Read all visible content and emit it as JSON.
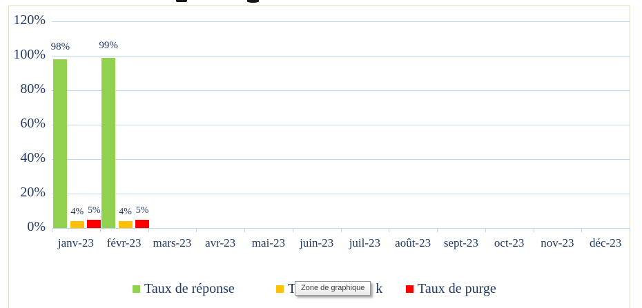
{
  "colors": {
    "text": "#1F3864",
    "gridline": "#BDD7EE",
    "frame_border": "#DED9C2",
    "series_green": "#92D050",
    "series_yellow": "#FFC000",
    "series_red": "#FF0000"
  },
  "tooltip": {
    "text": "Zone de graphique"
  },
  "chart_data": {
    "type": "bar",
    "categories": [
      "janv-23",
      "févr-23",
      "mars-23",
      "avr-23",
      "mai-23",
      "juin-23",
      "juil-23",
      "août-23",
      "sept-23",
      "oct-23",
      "nov-23",
      "déc-23"
    ],
    "series": [
      {
        "name": "Taux de réponse",
        "color": "#92D050",
        "values": [
          98,
          99,
          null,
          null,
          null,
          null,
          null,
          null,
          null,
          null,
          null,
          null
        ],
        "data_labels": [
          "98%",
          "99%",
          null,
          null,
          null,
          null,
          null,
          null,
          null,
          null,
          null,
          null
        ]
      },
      {
        "name_visible_prefix": "T",
        "name_visible_suffix": "k",
        "name_hidden_by_tooltip": true,
        "color": "#FFC000",
        "values": [
          4,
          4,
          null,
          null,
          null,
          null,
          null,
          null,
          null,
          null,
          null,
          null
        ],
        "data_labels": [
          "4%",
          "4%",
          null,
          null,
          null,
          null,
          null,
          null,
          null,
          null,
          null,
          null
        ]
      },
      {
        "name": "Taux de purge",
        "color": "#FF0000",
        "values": [
          5,
          5,
          null,
          null,
          null,
          null,
          null,
          null,
          null,
          null,
          null,
          null
        ],
        "data_labels": [
          "5%",
          "5%",
          null,
          null,
          null,
          null,
          null,
          null,
          null,
          null,
          null,
          null
        ]
      }
    ],
    "y_axis": {
      "tick_labels": [
        "0%",
        "20%",
        "40%",
        "60%",
        "80%",
        "100%",
        "120%"
      ],
      "min": 0,
      "max": 120,
      "step": 20,
      "grid": true
    },
    "legend": {
      "position": "bottom",
      "items": [
        {
          "label": "Taux de réponse",
          "color": "#92D050"
        },
        {
          "label_visible_prefix": "T",
          "label_visible_suffix": "k",
          "hidden_by_tooltip": true,
          "color": "#FFC000"
        },
        {
          "label": "Taux de purge",
          "color": "#FF0000"
        }
      ]
    }
  }
}
